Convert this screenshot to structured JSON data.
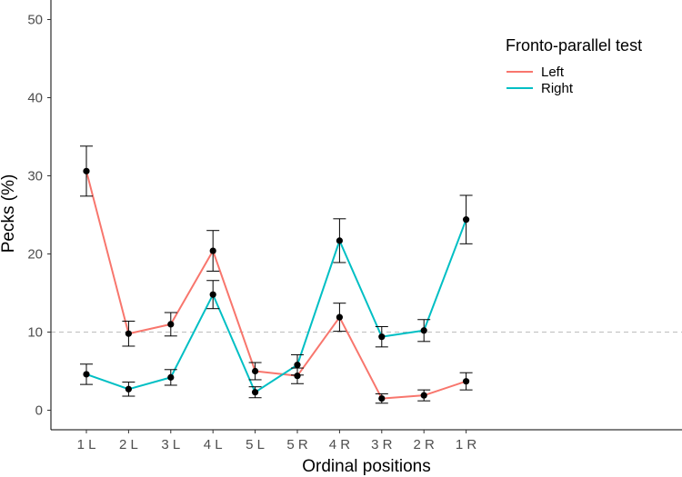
{
  "chart_data": {
    "type": "line",
    "title": "",
    "xlabel": "Ordinal positions",
    "ylabel": "Pecks (%)",
    "ylim": [
      -2.5,
      52.5
    ],
    "yticks": [
      0,
      10,
      20,
      30,
      40,
      50
    ],
    "categories": [
      "1 L",
      "2 L",
      "3 L",
      "4 L",
      "5 L",
      "5 R",
      "4 R",
      "3 R",
      "2 R",
      "1 R"
    ],
    "reference_line": 10,
    "legend": {
      "title": "Fronto-parallel test",
      "placement": "top-right"
    },
    "series": [
      {
        "name": "Left",
        "color": "#F8766D",
        "values": [
          30.6,
          9.8,
          11.0,
          20.4,
          5.0,
          4.4,
          11.9,
          1.5,
          1.9,
          3.7
        ],
        "error": [
          3.2,
          1.6,
          1.5,
          2.6,
          1.1,
          1.0,
          1.8,
          0.6,
          0.7,
          1.1
        ]
      },
      {
        "name": "Right",
        "color": "#00BFC4",
        "values": [
          4.6,
          2.7,
          4.2,
          14.8,
          2.3,
          5.8,
          21.7,
          9.4,
          10.2,
          24.4
        ],
        "error": [
          1.3,
          0.9,
          1.0,
          1.8,
          0.7,
          1.3,
          2.8,
          1.3,
          1.4,
          3.1
        ]
      }
    ]
  }
}
